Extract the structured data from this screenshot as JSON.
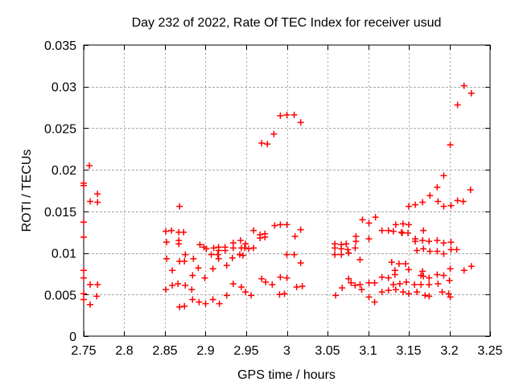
{
  "window": {
    "background": "#ffffff"
  },
  "chart_data": {
    "type": "scatter",
    "title": "Day 232 of 2022, Rate Of TEC Index for receiver usud",
    "xlabel": "GPS time / hours",
    "ylabel": "ROTI / TECUs",
    "xlim": [
      2.75,
      3.25
    ],
    "ylim": [
      0,
      0.035
    ],
    "xticks": [
      2.75,
      2.8,
      2.85,
      2.9,
      2.95,
      3,
      3.05,
      3.1,
      3.15,
      3.2,
      3.25
    ],
    "xtick_labels": [
      "2.75",
      "2.8",
      "2.85",
      "2.9",
      "2.95",
      "3",
      "3.05",
      "3.1",
      "3.15",
      "3.2",
      "3.25"
    ],
    "yticks": [
      0,
      0.005,
      0.01,
      0.015,
      0.02,
      0.025,
      0.03,
      0.035
    ],
    "ytick_labels": [
      "0",
      "0.005",
      "0.01",
      "0.015",
      "0.02",
      "0.025",
      "0.03",
      "0.035"
    ],
    "grid": true,
    "grid_color": "#a8a8a8",
    "border_color": "#000000",
    "marker_shape": "plus",
    "marker_color": "#ff0000",
    "legend": "none",
    "series": [
      {
        "name": "ROTI",
        "points": [
          [
            2.75,
            0.0184
          ],
          [
            2.75,
            0.0181
          ],
          [
            2.757,
            0.0205
          ],
          [
            2.767,
            0.0171
          ],
          [
            2.758,
            0.0162
          ],
          [
            2.767,
            0.0161
          ],
          [
            2.75,
            0.0137
          ],
          [
            2.75,
            0.0119
          ],
          [
            2.75,
            0.0079
          ],
          [
            2.75,
            0.007
          ],
          [
            2.758,
            0.0062
          ],
          [
            2.767,
            0.0062
          ],
          [
            2.75,
            0.0051
          ],
          [
            2.766,
            0.0048
          ],
          [
            2.75,
            0.0044
          ],
          [
            2.758,
            0.0038
          ],
          [
            2.868,
            0.0156
          ],
          [
            2.851,
            0.0126
          ],
          [
            2.858,
            0.0127
          ],
          [
            2.867,
            0.0125
          ],
          [
            2.873,
            0.0125
          ],
          [
            2.852,
            0.0113
          ],
          [
            2.867,
            0.0115
          ],
          [
            2.867,
            0.0111
          ],
          [
            2.852,
            0.0093
          ],
          [
            2.868,
            0.009
          ],
          [
            2.874,
            0.009
          ],
          [
            2.859,
            0.0079
          ],
          [
            2.851,
            0.0056
          ],
          [
            2.859,
            0.0061
          ],
          [
            2.866,
            0.0063
          ],
          [
            2.868,
            0.0035
          ],
          [
            2.874,
            0.0036
          ],
          [
            2.985,
            0.0133
          ],
          [
            2.992,
            0.0134
          ],
          [
            3.0,
            0.0134
          ],
          [
            2.959,
            0.0127
          ],
          [
            2.967,
            0.0122
          ],
          [
            2.973,
            0.0123
          ],
          [
            2.967,
            0.0118
          ],
          [
            2.973,
            0.0119
          ],
          [
            2.893,
            0.011
          ],
          [
            2.898,
            0.0107
          ],
          [
            2.901,
            0.0105
          ],
          [
            2.91,
            0.0106
          ],
          [
            2.916,
            0.0107
          ],
          [
            2.916,
            0.0103
          ],
          [
            2.924,
            0.0107
          ],
          [
            2.924,
            0.0103
          ],
          [
            2.934,
            0.0112
          ],
          [
            2.934,
            0.0106
          ],
          [
            2.943,
            0.0115
          ],
          [
            2.944,
            0.0106
          ],
          [
            2.948,
            0.0106
          ],
          [
            2.949,
            0.0111
          ],
          [
            2.953,
            0.0105
          ],
          [
            2.959,
            0.0106
          ],
          [
            2.907,
            0.0098
          ],
          [
            2.915,
            0.0098
          ],
          [
            2.916,
            0.0093
          ],
          [
            2.933,
            0.0094
          ],
          [
            2.942,
            0.0098
          ],
          [
            2.946,
            0.0097
          ],
          [
            2.875,
            0.0098
          ],
          [
            2.885,
            0.0093
          ],
          [
            2.891,
            0.0082
          ],
          [
            2.909,
            0.0081
          ],
          [
            2.926,
            0.0085
          ],
          [
            2.884,
            0.0073
          ],
          [
            2.899,
            0.007
          ],
          [
            2.934,
            0.0063
          ],
          [
            2.944,
            0.0059
          ],
          [
            2.969,
            0.0069
          ],
          [
            2.974,
            0.0065
          ],
          [
            2.982,
            0.0062
          ],
          [
            2.992,
            0.0071
          ],
          [
            3.0,
            0.007
          ],
          [
            2.875,
            0.0061
          ],
          [
            2.883,
            0.0056
          ],
          [
            2.926,
            0.0049
          ],
          [
            2.949,
            0.0053
          ],
          [
            2.956,
            0.0049
          ],
          [
            2.884,
            0.0044
          ],
          [
            2.892,
            0.0041
          ],
          [
            2.9,
            0.0039
          ],
          [
            2.909,
            0.0044
          ],
          [
            2.917,
            0.0039
          ],
          [
            2.991,
            0.005
          ],
          [
            2.997,
            0.0051
          ],
          [
            2.992,
            0.0265
          ],
          [
            3.0,
            0.0266
          ],
          [
            2.984,
            0.0243
          ],
          [
            2.969,
            0.0232
          ],
          [
            2.976,
            0.0231
          ],
          [
            3.009,
            0.0266
          ],
          [
            3.017,
            0.0257
          ],
          [
            3.017,
            0.0128
          ],
          [
            3.01,
            0.012
          ],
          [
            3.009,
            0.0098
          ],
          [
            3.0,
            0.0098
          ],
          [
            3.017,
            0.0088
          ],
          [
            3.012,
            0.0059
          ],
          [
            3.019,
            0.006
          ],
          [
            3.093,
            0.014
          ],
          [
            3.109,
            0.0143
          ],
          [
            3.101,
            0.0136
          ],
          [
            3.117,
            0.0127
          ],
          [
            3.125,
            0.0127
          ],
          [
            3.085,
            0.012
          ],
          [
            3.085,
            0.0114
          ],
          [
            3.101,
            0.0117
          ],
          [
            3.059,
            0.0111
          ],
          [
            3.059,
            0.0106
          ],
          [
            3.067,
            0.011
          ],
          [
            3.067,
            0.0105
          ],
          [
            3.073,
            0.0111
          ],
          [
            3.075,
            0.0104
          ],
          [
            3.076,
            0.01
          ],
          [
            3.084,
            0.0106
          ],
          [
            3.059,
            0.0098
          ],
          [
            3.067,
            0.0098
          ],
          [
            3.09,
            0.0092
          ],
          [
            3.076,
            0.0069
          ],
          [
            3.079,
            0.0064
          ],
          [
            3.068,
            0.0058
          ],
          [
            3.084,
            0.0061
          ],
          [
            3.09,
            0.0062
          ],
          [
            3.092,
            0.0056
          ],
          [
            3.101,
            0.0064
          ],
          [
            3.108,
            0.0064
          ],
          [
            3.117,
            0.0071
          ],
          [
            3.125,
            0.007
          ],
          [
            3.06,
            0.0049
          ],
          [
            3.101,
            0.0047
          ],
          [
            3.108,
            0.0041
          ],
          [
            3.117,
            0.0053
          ],
          [
            3.125,
            0.0055
          ],
          [
            3.218,
            0.0301
          ],
          [
            3.227,
            0.0292
          ],
          [
            3.21,
            0.0278
          ],
          [
            3.201,
            0.023
          ],
          [
            3.193,
            0.0193
          ],
          [
            3.185,
            0.0179
          ],
          [
            3.226,
            0.0176
          ],
          [
            3.176,
            0.0169
          ],
          [
            3.15,
            0.0156
          ],
          [
            3.158,
            0.0158
          ],
          [
            3.167,
            0.0161
          ],
          [
            3.186,
            0.0162
          ],
          [
            3.193,
            0.0156
          ],
          [
            3.202,
            0.0157
          ],
          [
            3.21,
            0.0163
          ],
          [
            3.217,
            0.0162
          ],
          [
            3.134,
            0.0134
          ],
          [
            3.143,
            0.0135
          ],
          [
            3.15,
            0.0134
          ],
          [
            3.131,
            0.0126
          ],
          [
            3.141,
            0.0125
          ],
          [
            3.142,
            0.0124
          ],
          [
            3.149,
            0.0124
          ],
          [
            3.168,
            0.0127
          ],
          [
            3.158,
            0.0117
          ],
          [
            3.158,
            0.0114
          ],
          [
            3.167,
            0.0115
          ],
          [
            3.175,
            0.0114
          ],
          [
            3.185,
            0.0115
          ],
          [
            3.193,
            0.0112
          ],
          [
            3.202,
            0.0113
          ],
          [
            3.16,
            0.0103
          ],
          [
            3.168,
            0.0105
          ],
          [
            3.176,
            0.0102
          ],
          [
            3.185,
            0.0102
          ],
          [
            3.193,
            0.0099
          ],
          [
            3.202,
            0.0104
          ],
          [
            3.209,
            0.0104
          ],
          [
            3.129,
            0.0089
          ],
          [
            3.138,
            0.0087
          ],
          [
            3.146,
            0.0087
          ],
          [
            3.133,
            0.0079
          ],
          [
            3.133,
            0.0074
          ],
          [
            3.15,
            0.008
          ],
          [
            3.167,
            0.0078
          ],
          [
            3.165,
            0.0073
          ],
          [
            3.168,
            0.0072
          ],
          [
            3.175,
            0.007
          ],
          [
            3.185,
            0.0074
          ],
          [
            3.193,
            0.0073
          ],
          [
            3.201,
            0.0081
          ],
          [
            3.218,
            0.0079
          ],
          [
            3.227,
            0.0084
          ],
          [
            3.131,
            0.0062
          ],
          [
            3.139,
            0.0063
          ],
          [
            3.147,
            0.0065
          ],
          [
            3.157,
            0.0062
          ],
          [
            3.165,
            0.0062
          ],
          [
            3.175,
            0.0062
          ],
          [
            3.186,
            0.0063
          ],
          [
            3.134,
            0.0056
          ],
          [
            3.143,
            0.0053
          ],
          [
            3.15,
            0.0051
          ],
          [
            3.16,
            0.0053
          ],
          [
            3.17,
            0.0049
          ],
          [
            3.175,
            0.0048
          ],
          [
            3.191,
            0.0053
          ],
          [
            3.199,
            0.0051
          ],
          [
            3.201,
            0.0047
          ],
          [
            3.2,
            0.0067
          ]
        ]
      }
    ]
  }
}
